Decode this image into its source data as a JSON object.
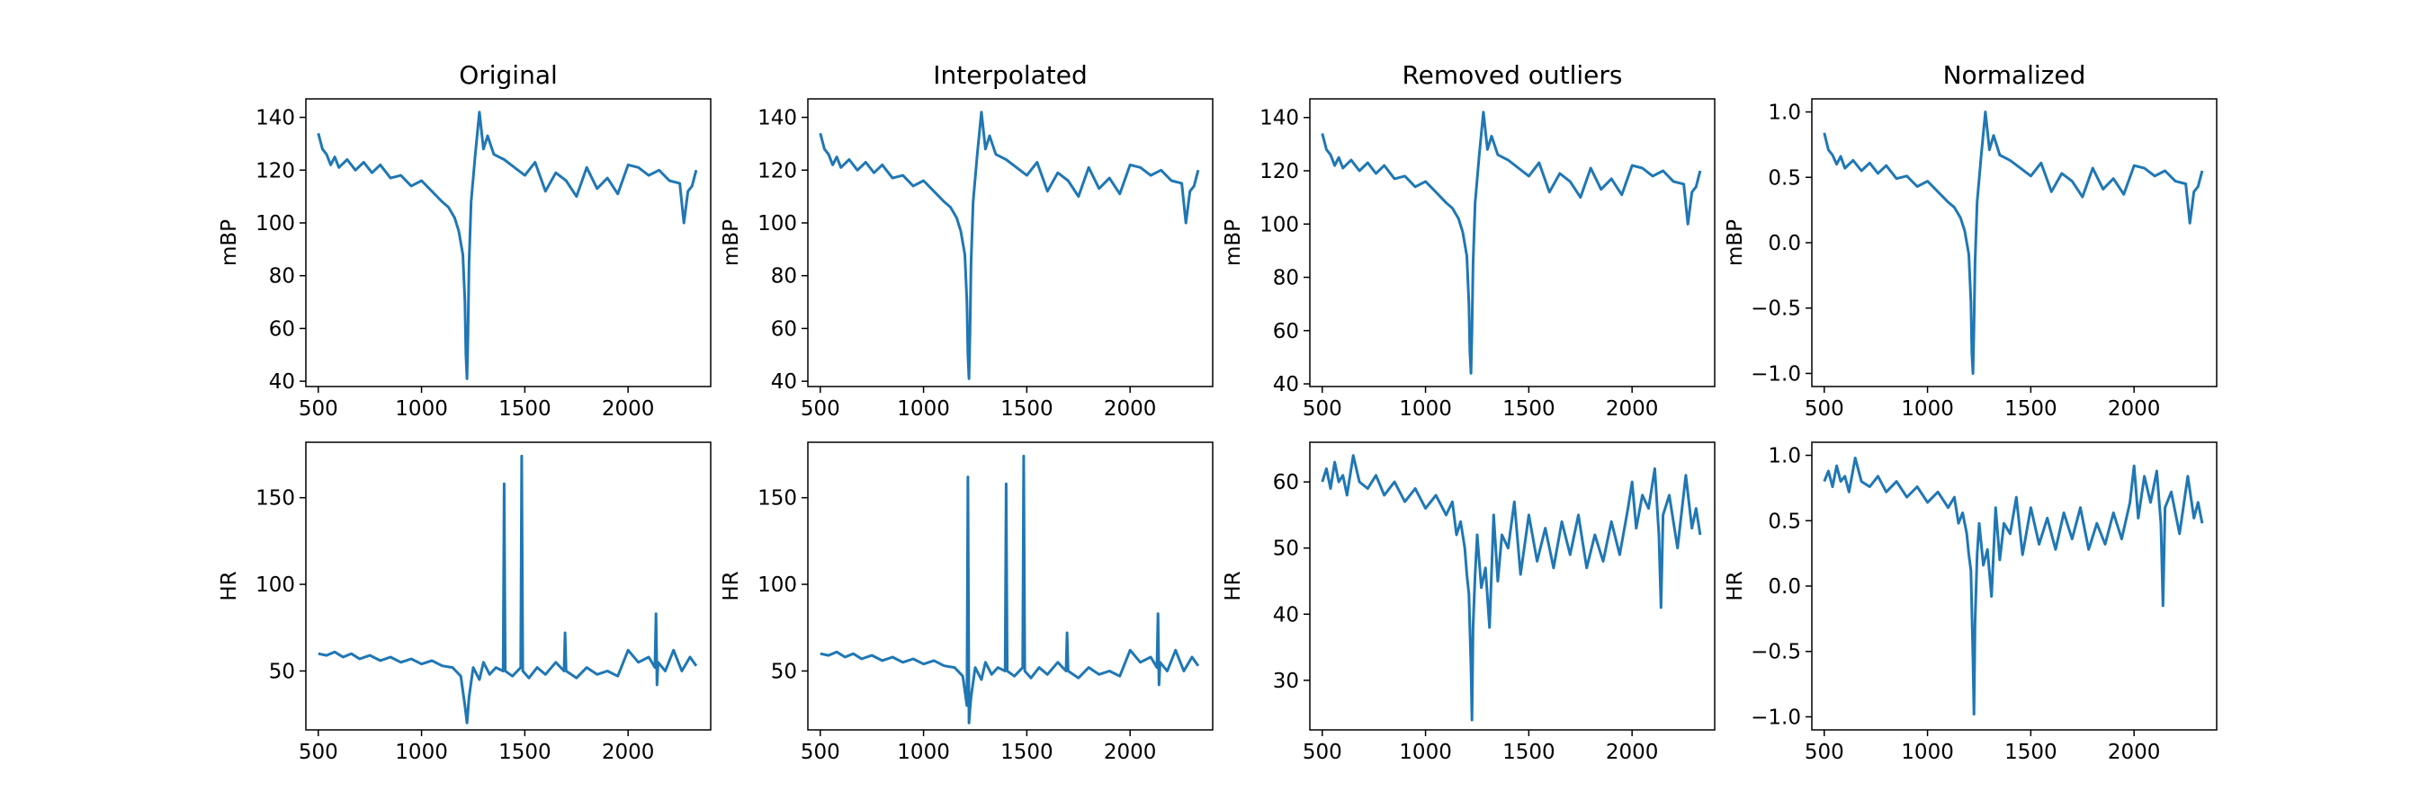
{
  "figure": {
    "line_color": "#1f77b4"
  },
  "chart_data": [
    {
      "type": "line",
      "title": "Original",
      "xlabel": "",
      "ylabel": "mBP",
      "xlim": [
        440,
        2400
      ],
      "ylim": [
        38,
        147
      ],
      "xticks": [
        500,
        1000,
        1500,
        2000
      ],
      "yticks": [
        40,
        60,
        80,
        100,
        120,
        140
      ],
      "x": [
        500,
        520,
        540,
        560,
        580,
        600,
        640,
        680,
        720,
        760,
        800,
        850,
        900,
        950,
        1000,
        1050,
        1100,
        1130,
        1160,
        1180,
        1200,
        1210,
        1215,
        1220,
        1225,
        1230,
        1240,
        1260,
        1280,
        1300,
        1320,
        1350,
        1400,
        1450,
        1500,
        1550,
        1600,
        1650,
        1700,
        1750,
        1800,
        1850,
        1900,
        1950,
        2000,
        2050,
        2100,
        2150,
        2200,
        2250,
        2270,
        2290,
        2310,
        2330
      ],
      "y": [
        134,
        128,
        126,
        122,
        125,
        121,
        124,
        120,
        123,
        119,
        122,
        117,
        118,
        114,
        116,
        112,
        108,
        106,
        102,
        97,
        88,
        70,
        50,
        41,
        58,
        85,
        108,
        126,
        142,
        128,
        133,
        126,
        124,
        121,
        118,
        123,
        112,
        119,
        116,
        110,
        121,
        113,
        117,
        111,
        122,
        121,
        118,
        120,
        116,
        115,
        100,
        112,
        114,
        120
      ]
    },
    {
      "type": "line",
      "title": "Interpolated",
      "xlabel": "",
      "ylabel": "mBP",
      "xlim": [
        440,
        2400
      ],
      "ylim": [
        38,
        147
      ],
      "xticks": [
        500,
        1000,
        1500,
        2000
      ],
      "yticks": [
        40,
        60,
        80,
        100,
        120,
        140
      ],
      "x": [
        500,
        520,
        540,
        560,
        580,
        600,
        640,
        680,
        720,
        760,
        800,
        850,
        900,
        950,
        1000,
        1050,
        1100,
        1130,
        1160,
        1180,
        1200,
        1210,
        1215,
        1220,
        1225,
        1230,
        1240,
        1260,
        1280,
        1300,
        1320,
        1350,
        1400,
        1450,
        1500,
        1550,
        1600,
        1650,
        1700,
        1750,
        1800,
        1850,
        1900,
        1950,
        2000,
        2050,
        2100,
        2150,
        2200,
        2250,
        2270,
        2290,
        2310,
        2330
      ],
      "y": [
        134,
        128,
        126,
        122,
        125,
        121,
        124,
        120,
        123,
        119,
        122,
        117,
        118,
        114,
        116,
        112,
        108,
        106,
        102,
        97,
        88,
        70,
        50,
        41,
        58,
        85,
        108,
        126,
        142,
        128,
        133,
        126,
        124,
        121,
        118,
        123,
        112,
        119,
        116,
        110,
        121,
        113,
        117,
        111,
        122,
        121,
        118,
        120,
        116,
        115,
        100,
        112,
        114,
        120
      ]
    },
    {
      "type": "line",
      "title": "Removed outliers",
      "xlabel": "",
      "ylabel": "mBP",
      "xlim": [
        440,
        2400
      ],
      "ylim": [
        39,
        147
      ],
      "xticks": [
        500,
        1000,
        1500,
        2000
      ],
      "yticks": [
        40,
        60,
        80,
        100,
        120,
        140
      ],
      "x": [
        500,
        520,
        540,
        560,
        580,
        600,
        640,
        680,
        720,
        760,
        800,
        850,
        900,
        950,
        1000,
        1050,
        1100,
        1130,
        1160,
        1180,
        1200,
        1210,
        1215,
        1220,
        1225,
        1230,
        1240,
        1260,
        1280,
        1300,
        1320,
        1350,
        1400,
        1450,
        1500,
        1550,
        1600,
        1650,
        1700,
        1750,
        1800,
        1850,
        1900,
        1950,
        2000,
        2050,
        2100,
        2150,
        2200,
        2250,
        2270,
        2290,
        2310,
        2330
      ],
      "y": [
        134,
        128,
        126,
        122,
        125,
        121,
        124,
        120,
        123,
        119,
        122,
        117,
        118,
        114,
        116,
        112,
        108,
        106,
        102,
        97,
        88,
        70,
        52,
        44,
        60,
        85,
        108,
        126,
        142,
        128,
        133,
        126,
        124,
        121,
        118,
        123,
        112,
        119,
        116,
        110,
        121,
        113,
        117,
        111,
        122,
        121,
        118,
        120,
        116,
        115,
        100,
        112,
        114,
        120
      ]
    },
    {
      "type": "line",
      "title": "Normalized",
      "xlabel": "",
      "ylabel": "mBP",
      "xlim": [
        440,
        2400
      ],
      "ylim": [
        -1.1,
        1.1
      ],
      "xticks": [
        500,
        1000,
        1500,
        2000
      ],
      "yticks": [
        -1.0,
        -0.5,
        0.0,
        0.5,
        1.0
      ],
      "x": [
        500,
        520,
        540,
        560,
        580,
        600,
        640,
        680,
        720,
        760,
        800,
        850,
        900,
        950,
        1000,
        1050,
        1100,
        1130,
        1160,
        1180,
        1200,
        1210,
        1215,
        1220,
        1225,
        1230,
        1240,
        1260,
        1280,
        1300,
        1320,
        1350,
        1400,
        1450,
        1500,
        1550,
        1600,
        1650,
        1700,
        1750,
        1800,
        1850,
        1900,
        1950,
        2000,
        2050,
        2100,
        2150,
        2200,
        2250,
        2270,
        2290,
        2310,
        2330
      ],
      "y": [
        0.84,
        0.71,
        0.67,
        0.6,
        0.66,
        0.57,
        0.63,
        0.55,
        0.61,
        0.53,
        0.59,
        0.49,
        0.51,
        0.43,
        0.47,
        0.39,
        0.31,
        0.27,
        0.19,
        0.09,
        -0.09,
        -0.45,
        -0.85,
        -1.0,
        -0.65,
        -0.15,
        0.31,
        0.67,
        1.0,
        0.71,
        0.82,
        0.67,
        0.63,
        0.57,
        0.51,
        0.61,
        0.39,
        0.53,
        0.47,
        0.35,
        0.57,
        0.41,
        0.49,
        0.37,
        0.59,
        0.57,
        0.51,
        0.55,
        0.47,
        0.45,
        0.15,
        0.39,
        0.43,
        0.55
      ]
    },
    {
      "type": "line",
      "title": "",
      "xlabel": "",
      "ylabel": "HR",
      "xlim": [
        440,
        2400
      ],
      "ylim": [
        16,
        182
      ],
      "xticks": [
        500,
        1000,
        1500,
        2000
      ],
      "yticks": [
        50,
        100,
        150
      ],
      "x": [
        500,
        540,
        580,
        620,
        660,
        700,
        750,
        800,
        850,
        900,
        950,
        1000,
        1050,
        1100,
        1150,
        1190,
        1210,
        1220,
        1230,
        1250,
        1280,
        1300,
        1330,
        1360,
        1395,
        1400,
        1405,
        1440,
        1480,
        1485,
        1490,
        1520,
        1560,
        1600,
        1650,
        1690,
        1695,
        1700,
        1750,
        1800,
        1850,
        1900,
        1950,
        2000,
        2050,
        2100,
        2130,
        2135,
        2140,
        2145,
        2180,
        2220,
        2260,
        2300,
        2330
      ],
      "y": [
        60,
        59,
        61,
        58,
        60,
        57,
        59,
        56,
        58,
        55,
        57,
        54,
        56,
        53,
        52,
        47,
        30,
        20,
        35,
        52,
        45,
        55,
        48,
        52,
        50,
        158,
        50,
        47,
        52,
        174,
        50,
        46,
        52,
        48,
        55,
        50,
        72,
        50,
        46,
        52,
        48,
        50,
        47,
        62,
        55,
        58,
        52,
        83,
        42,
        55,
        50,
        62,
        50,
        58,
        53
      ]
    },
    {
      "type": "line",
      "title": "",
      "xlabel": "",
      "ylabel": "HR",
      "xlim": [
        440,
        2400
      ],
      "ylim": [
        16,
        182
      ],
      "xticks": [
        500,
        1000,
        1500,
        2000
      ],
      "yticks": [
        50,
        100,
        150
      ],
      "x": [
        500,
        540,
        580,
        620,
        660,
        700,
        750,
        800,
        850,
        900,
        950,
        1000,
        1050,
        1100,
        1150,
        1190,
        1210,
        1215,
        1220,
        1225,
        1230,
        1250,
        1280,
        1300,
        1330,
        1360,
        1395,
        1400,
        1405,
        1440,
        1480,
        1485,
        1490,
        1520,
        1560,
        1600,
        1650,
        1690,
        1695,
        1700,
        1750,
        1800,
        1850,
        1900,
        1950,
        2000,
        2050,
        2100,
        2130,
        2135,
        2140,
        2145,
        2180,
        2220,
        2260,
        2300,
        2330
      ],
      "y": [
        60,
        59,
        61,
        58,
        60,
        57,
        59,
        56,
        58,
        55,
        57,
        54,
        56,
        53,
        52,
        47,
        30,
        162,
        20,
        28,
        35,
        52,
        45,
        55,
        48,
        52,
        50,
        158,
        50,
        47,
        52,
        174,
        50,
        46,
        52,
        48,
        55,
        50,
        72,
        50,
        46,
        52,
        48,
        50,
        47,
        62,
        55,
        58,
        52,
        83,
        42,
        55,
        50,
        62,
        50,
        58,
        53
      ]
    },
    {
      "type": "line",
      "title": "",
      "xlabel": "",
      "ylabel": "HR",
      "xlim": [
        440,
        2400
      ],
      "ylim": [
        22.5,
        66
      ],
      "xticks": [
        500,
        1000,
        1500,
        2000
      ],
      "yticks": [
        30,
        40,
        50,
        60
      ],
      "x": [
        500,
        520,
        540,
        560,
        580,
        600,
        620,
        650,
        680,
        720,
        760,
        800,
        850,
        900,
        950,
        1000,
        1050,
        1100,
        1130,
        1150,
        1170,
        1190,
        1200,
        1210,
        1220,
        1225,
        1230,
        1240,
        1250,
        1270,
        1290,
        1310,
        1330,
        1350,
        1370,
        1400,
        1430,
        1460,
        1500,
        1540,
        1580,
        1620,
        1660,
        1700,
        1740,
        1780,
        1820,
        1860,
        1900,
        1940,
        1980,
        2000,
        2020,
        2050,
        2080,
        2110,
        2130,
        2140,
        2150,
        2180,
        2220,
        2260,
        2290,
        2310,
        2330
      ],
      "y": [
        60,
        62,
        59,
        63,
        60,
        61,
        58,
        64,
        60,
        59,
        61,
        58,
        60,
        57,
        59,
        56,
        58,
        55,
        57,
        52,
        54,
        50,
        46,
        43,
        32,
        24,
        38,
        46,
        52,
        44,
        47,
        38,
        55,
        45,
        52,
        50,
        57,
        46,
        55,
        48,
        53,
        47,
        54,
        49,
        55,
        47,
        52,
        48,
        54,
        49,
        56,
        60,
        53,
        58,
        56,
        62,
        52,
        41,
        55,
        58,
        50,
        61,
        53,
        56,
        52
      ]
    },
    {
      "type": "line",
      "title": "",
      "xlabel": "",
      "ylabel": "HR",
      "xlim": [
        440,
        2400
      ],
      "ylim": [
        -1.1,
        1.1
      ],
      "xticks": [
        500,
        1000,
        1500,
        2000
      ],
      "yticks": [
        -1.0,
        -0.5,
        0.0,
        0.5,
        1.0
      ],
      "x": [
        500,
        520,
        540,
        560,
        580,
        600,
        620,
        650,
        680,
        720,
        760,
        800,
        850,
        900,
        950,
        1000,
        1050,
        1100,
        1130,
        1150,
        1170,
        1190,
        1200,
        1210,
        1220,
        1225,
        1230,
        1240,
        1250,
        1270,
        1290,
        1310,
        1330,
        1350,
        1370,
        1400,
        1430,
        1460,
        1500,
        1540,
        1580,
        1620,
        1660,
        1700,
        1740,
        1780,
        1820,
        1860,
        1900,
        1940,
        1980,
        2000,
        2020,
        2050,
        2080,
        2110,
        2130,
        2140,
        2150,
        2180,
        2220,
        2260,
        2290,
        2310,
        2330
      ],
      "y": [
        0.8,
        0.88,
        0.76,
        0.92,
        0.8,
        0.84,
        0.72,
        0.98,
        0.8,
        0.76,
        0.84,
        0.72,
        0.8,
        0.68,
        0.76,
        0.64,
        0.72,
        0.6,
        0.68,
        0.48,
        0.56,
        0.4,
        0.24,
        0.12,
        -0.56,
        -0.98,
        -0.28,
        0.24,
        0.48,
        0.16,
        0.28,
        -0.08,
        0.6,
        0.2,
        0.48,
        0.4,
        0.68,
        0.24,
        0.6,
        0.32,
        0.52,
        0.28,
        0.56,
        0.36,
        0.6,
        0.28,
        0.48,
        0.32,
        0.56,
        0.36,
        0.64,
        0.92,
        0.52,
        0.84,
        0.64,
        0.88,
        0.48,
        -0.15,
        0.6,
        0.72,
        0.4,
        0.84,
        0.52,
        0.64,
        0.48
      ]
    }
  ]
}
